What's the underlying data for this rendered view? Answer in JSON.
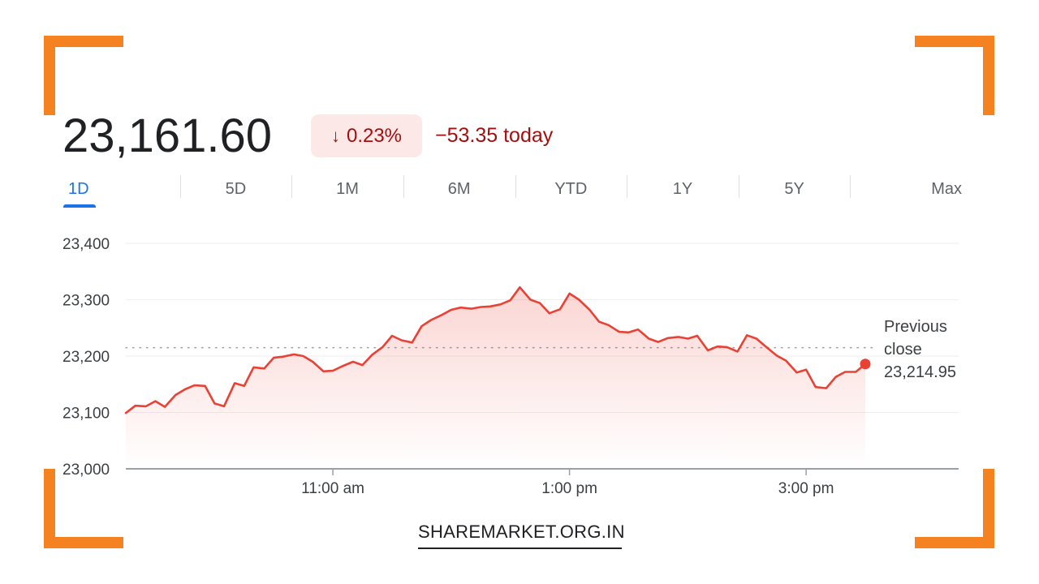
{
  "quote": {
    "price": "23,161.60",
    "change_arrow": "↓",
    "change_percent": "0.23%",
    "change_today": "−53.35 today"
  },
  "tabs": [
    "1D",
    "5D",
    "1M",
    "6M",
    "YTD",
    "1Y",
    "5Y",
    "Max"
  ],
  "active_tab": "1D",
  "colors": {
    "accent_orange": "#f58220",
    "line_red": "#e94235",
    "negative_text": "#a50e0e",
    "badge_bg": "#fce8e6",
    "tab_active": "#1a73e8"
  },
  "chart_data": {
    "type": "line",
    "y_ticks": [
      "23,400",
      "23,300",
      "23,200",
      "23,100",
      "23,000"
    ],
    "ylim": [
      23000,
      23400
    ],
    "x_tick_labels": [
      "11:00 am",
      "1:00 pm",
      "3:00 pm"
    ],
    "x_ticks_hours": [
      11,
      13,
      15
    ],
    "xlim_hours": [
      9.25,
      15.5
    ],
    "grid": true,
    "previous_close": {
      "label_line1": "Previous",
      "label_line2": "close",
      "value_text": "23,214.95",
      "value": 23214.95
    },
    "series": [
      {
        "points": [
          [
            9.25,
            23099
          ],
          [
            9.33,
            23112
          ],
          [
            9.42,
            23111
          ],
          [
            9.5,
            23120
          ],
          [
            9.58,
            23110
          ],
          [
            9.67,
            23131
          ],
          [
            9.75,
            23141
          ],
          [
            9.83,
            23148
          ],
          [
            9.92,
            23147
          ],
          [
            10.0,
            23116
          ],
          [
            10.08,
            23111
          ],
          [
            10.17,
            23152
          ],
          [
            10.25,
            23147
          ],
          [
            10.33,
            23180
          ],
          [
            10.42,
            23178
          ],
          [
            10.5,
            23197
          ],
          [
            10.58,
            23199
          ],
          [
            10.67,
            23203
          ],
          [
            10.75,
            23200
          ],
          [
            10.83,
            23190
          ],
          [
            10.92,
            23173
          ],
          [
            11.0,
            23174
          ],
          [
            11.08,
            23182
          ],
          [
            11.17,
            23190
          ],
          [
            11.25,
            23184
          ],
          [
            11.33,
            23202
          ],
          [
            11.42,
            23216
          ],
          [
            11.5,
            23236
          ],
          [
            11.58,
            23228
          ],
          [
            11.67,
            23224
          ],
          [
            11.75,
            23253
          ],
          [
            11.83,
            23264
          ],
          [
            11.92,
            23273
          ],
          [
            12.0,
            23282
          ],
          [
            12.08,
            23286
          ],
          [
            12.17,
            23284
          ],
          [
            12.25,
            23287
          ],
          [
            12.33,
            23288
          ],
          [
            12.42,
            23292
          ],
          [
            12.5,
            23299
          ],
          [
            12.58,
            23322
          ],
          [
            12.67,
            23300
          ],
          [
            12.75,
            23294
          ],
          [
            12.83,
            23276
          ],
          [
            12.92,
            23283
          ],
          [
            13.0,
            23311
          ],
          [
            13.08,
            23300
          ],
          [
            13.17,
            23282
          ],
          [
            13.25,
            23261
          ],
          [
            13.33,
            23255
          ],
          [
            13.42,
            23243
          ],
          [
            13.5,
            23242
          ],
          [
            13.58,
            23247
          ],
          [
            13.67,
            23231
          ],
          [
            13.75,
            23225
          ],
          [
            13.83,
            23232
          ],
          [
            13.92,
            23234
          ],
          [
            14.0,
            23231
          ],
          [
            14.08,
            23236
          ],
          [
            14.17,
            23210
          ],
          [
            14.25,
            23217
          ],
          [
            14.33,
            23216
          ],
          [
            14.42,
            23208
          ],
          [
            14.5,
            23237
          ],
          [
            14.58,
            23231
          ],
          [
            14.67,
            23215
          ],
          [
            14.75,
            23201
          ],
          [
            14.83,
            23192
          ],
          [
            14.92,
            23171
          ],
          [
            15.0,
            23176
          ],
          [
            15.08,
            23145
          ],
          [
            15.17,
            23143
          ],
          [
            15.25,
            23163
          ],
          [
            15.33,
            23172
          ],
          [
            15.42,
            23172
          ],
          [
            15.5,
            23186
          ]
        ]
      }
    ]
  },
  "footer": {
    "site": "SHAREMARKET.ORG.IN"
  }
}
